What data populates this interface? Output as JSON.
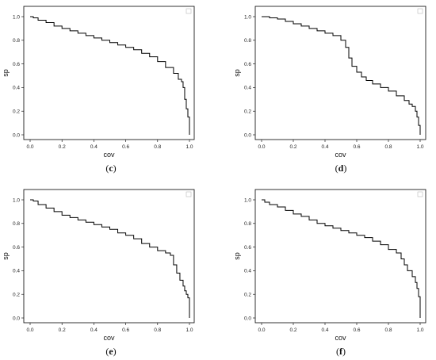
{
  "chart_data": [
    {
      "type": "line",
      "panel_label": "c",
      "xlabel": "cov",
      "ylabel": "sp",
      "xlim": [
        0,
        1
      ],
      "ylim": [
        0,
        1
      ],
      "xticks": [
        "0.0",
        "0.2",
        "0.4",
        "0.6",
        "0.8",
        "1.0"
      ],
      "yticks": [
        "0.0",
        "0.2",
        "0.4",
        "0.6",
        "0.8",
        "1.0"
      ],
      "legend": "top-right (empty box)",
      "grid": false,
      "step": true,
      "x": [
        0.0,
        0.02,
        0.05,
        0.1,
        0.15,
        0.2,
        0.25,
        0.3,
        0.35,
        0.4,
        0.45,
        0.5,
        0.55,
        0.6,
        0.65,
        0.7,
        0.75,
        0.8,
        0.85,
        0.9,
        0.93,
        0.95,
        0.96,
        0.97,
        0.98,
        0.99,
        1.0,
        1.0
      ],
      "y": [
        1.0,
        0.99,
        0.97,
        0.95,
        0.92,
        0.9,
        0.88,
        0.86,
        0.84,
        0.82,
        0.8,
        0.78,
        0.76,
        0.74,
        0.72,
        0.69,
        0.66,
        0.62,
        0.57,
        0.52,
        0.47,
        0.45,
        0.4,
        0.3,
        0.22,
        0.15,
        0.1,
        0.0
      ]
    },
    {
      "type": "line",
      "panel_label": "d",
      "xlabel": "cov",
      "ylabel": "sp",
      "xlim": [
        0,
        1
      ],
      "ylim": [
        0,
        1
      ],
      "xticks": [
        "0.0",
        "0.2",
        "0.4",
        "0.6",
        "0.8",
        "1.0"
      ],
      "yticks": [
        "0.0",
        "0.2",
        "0.4",
        "0.6",
        "0.8",
        "1.0"
      ],
      "legend": "top-right (empty box)",
      "grid": false,
      "step": true,
      "x": [
        0.0,
        0.05,
        0.1,
        0.15,
        0.2,
        0.25,
        0.3,
        0.35,
        0.4,
        0.45,
        0.5,
        0.53,
        0.55,
        0.57,
        0.6,
        0.63,
        0.66,
        0.7,
        0.75,
        0.8,
        0.85,
        0.9,
        0.93,
        0.95,
        0.97,
        0.98,
        0.99,
        1.0
      ],
      "y": [
        1.0,
        0.99,
        0.98,
        0.96,
        0.94,
        0.92,
        0.9,
        0.88,
        0.86,
        0.84,
        0.8,
        0.74,
        0.65,
        0.58,
        0.53,
        0.49,
        0.46,
        0.43,
        0.4,
        0.37,
        0.33,
        0.29,
        0.26,
        0.24,
        0.2,
        0.15,
        0.08,
        0.0
      ]
    },
    {
      "type": "line",
      "panel_label": "e",
      "xlabel": "cov",
      "ylabel": "sp",
      "xlim": [
        0,
        1
      ],
      "ylim": [
        0,
        1
      ],
      "xticks": [
        "0.0",
        "0.2",
        "0.4",
        "0.6",
        "0.8",
        "1.0"
      ],
      "yticks": [
        "0.0",
        "0.2",
        "0.4",
        "0.6",
        "0.8",
        "1.0"
      ],
      "legend": "top-right (empty box)",
      "grid": false,
      "step": true,
      "x": [
        0.0,
        0.02,
        0.05,
        0.1,
        0.15,
        0.2,
        0.25,
        0.3,
        0.35,
        0.4,
        0.45,
        0.5,
        0.55,
        0.6,
        0.65,
        0.7,
        0.75,
        0.8,
        0.85,
        0.88,
        0.9,
        0.92,
        0.94,
        0.96,
        0.97,
        0.98,
        0.99,
        1.0,
        1.0
      ],
      "y": [
        1.0,
        0.99,
        0.96,
        0.93,
        0.9,
        0.87,
        0.85,
        0.83,
        0.81,
        0.79,
        0.77,
        0.75,
        0.72,
        0.7,
        0.67,
        0.63,
        0.6,
        0.57,
        0.55,
        0.53,
        0.45,
        0.38,
        0.32,
        0.27,
        0.23,
        0.2,
        0.17,
        0.15,
        0.0
      ]
    },
    {
      "type": "line",
      "panel_label": "f",
      "xlabel": "cov",
      "ylabel": "sp",
      "xlim": [
        0,
        1
      ],
      "ylim": [
        0,
        1
      ],
      "xticks": [
        "0.0",
        "0.2",
        "0.4",
        "0.6",
        "0.8",
        "1.0"
      ],
      "yticks": [
        "0.0",
        "0.2",
        "0.4",
        "0.6",
        "0.8",
        "1.0"
      ],
      "legend": "top-right (empty box)",
      "grid": false,
      "step": true,
      "x": [
        0.0,
        0.02,
        0.05,
        0.1,
        0.15,
        0.2,
        0.25,
        0.3,
        0.35,
        0.4,
        0.45,
        0.5,
        0.55,
        0.6,
        0.65,
        0.7,
        0.75,
        0.8,
        0.85,
        0.88,
        0.9,
        0.92,
        0.95,
        0.97,
        0.98,
        0.99,
        1.0,
        1.0
      ],
      "y": [
        1.0,
        0.98,
        0.96,
        0.94,
        0.91,
        0.88,
        0.86,
        0.83,
        0.8,
        0.78,
        0.76,
        0.74,
        0.72,
        0.7,
        0.68,
        0.65,
        0.62,
        0.58,
        0.55,
        0.5,
        0.45,
        0.4,
        0.35,
        0.3,
        0.25,
        0.18,
        0.12,
        0.0
      ]
    }
  ]
}
